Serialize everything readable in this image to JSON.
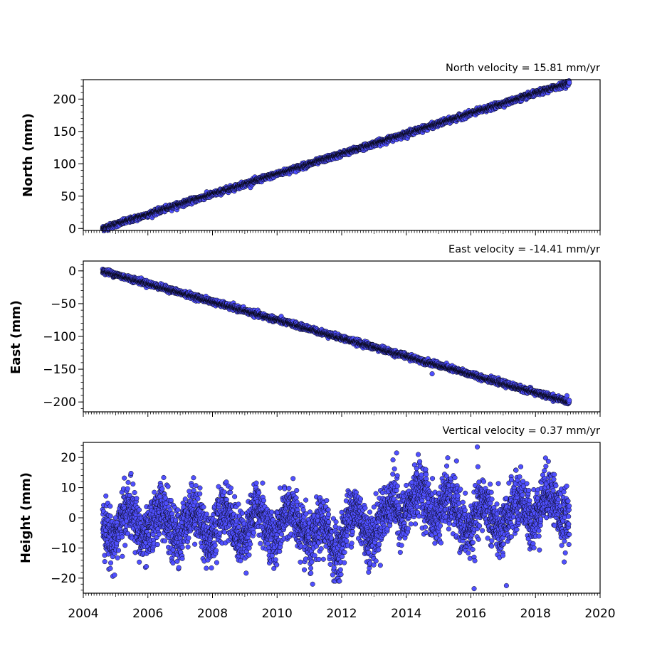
{
  "chart_data": [
    {
      "type": "scatter",
      "panel": "north",
      "title": "North velocity = 15.81 mm/yr",
      "ylabel": "North (mm)",
      "xlabel": "",
      "xlim": [
        2004,
        2020
      ],
      "ylim": [
        -3,
        230
      ],
      "yticks": [
        0,
        50,
        100,
        150,
        200
      ],
      "xtick_labels_shown": false,
      "grid": false,
      "trend": {
        "start_year": 2004.6,
        "end_year": 2019.05,
        "start_value": 0,
        "end_value": 225
      },
      "noise_mm": 2.0,
      "marker_color": "#5050ff",
      "marker_edge": "#000000",
      "series": [
        {
          "x": [
            2004.6,
            2005,
            2006,
            2007,
            2008,
            2009,
            2010,
            2011,
            2012,
            2013,
            2014,
            2015,
            2016,
            2017,
            2018,
            2019.05
          ],
          "y": [
            0,
            6,
            22,
            38,
            53,
            69,
            85,
            101,
            116,
            132,
            148,
            163,
            179,
            195,
            210,
            225
          ]
        }
      ]
    },
    {
      "type": "scatter",
      "panel": "east",
      "title": "East velocity = -14.41 mm/yr",
      "ylabel": "East (mm)",
      "xlabel": "",
      "xlim": [
        2004,
        2020
      ],
      "ylim": [
        -215,
        15
      ],
      "yticks": [
        0,
        -50,
        -100,
        -150,
        -200
      ],
      "xtick_labels_shown": false,
      "grid": false,
      "trend": {
        "start_year": 2004.6,
        "end_year": 2019.05,
        "start_value": 0,
        "end_value": -200
      },
      "noise_mm": 2.0,
      "outliers": [
        {
          "x": 2014.8,
          "y": -157
        }
      ],
      "marker_color": "#5050ff",
      "marker_edge": "#000000",
      "series": [
        {
          "x": [
            2004.6,
            2006,
            2008,
            2010,
            2012,
            2014,
            2016,
            2018,
            2019.05
          ],
          "y": [
            0,
            -16,
            -42,
            -71,
            -100,
            -128,
            -155,
            -182,
            -200
          ]
        }
      ]
    },
    {
      "type": "scatter",
      "panel": "height",
      "title": "Vertical velocity = 0.37 mm/yr",
      "ylabel": "Height (mm)",
      "xlabel": "",
      "xlim": [
        2004,
        2020
      ],
      "ylim": [
        -25,
        25
      ],
      "yticks": [
        20,
        10,
        0,
        -10,
        -20
      ],
      "xticks": [
        2004,
        2006,
        2008,
        2010,
        2012,
        2014,
        2016,
        2018,
        2020
      ],
      "xtick_labels_shown": true,
      "grid": false,
      "seasonal_amplitude_mm": 5,
      "noise_mm": 4.5,
      "baseline_by_period": [
        {
          "from": 2004.6,
          "to": 2011.0,
          "level": -2
        },
        {
          "from": 2011.0,
          "to": 2012.0,
          "level": -7
        },
        {
          "from": 2012.0,
          "to": 2013.5,
          "level": -2
        },
        {
          "from": 2013.5,
          "to": 2015.3,
          "level": 5
        },
        {
          "from": 2015.3,
          "to": 2017.5,
          "level": 0
        },
        {
          "from": 2017.5,
          "to": 2019.05,
          "level": 4
        }
      ],
      "extremes": [
        {
          "x": 2016.2,
          "y": 23.5
        },
        {
          "x": 2013.7,
          "y": 21.5
        },
        {
          "x": 2016.1,
          "y": -23.5
        },
        {
          "x": 2017.1,
          "y": -22.5
        },
        {
          "x": 2011.1,
          "y": -22
        }
      ],
      "marker_color": "#5050ff",
      "marker_edge": "#000000",
      "series": [
        {
          "x": [
            2004.6,
            2006,
            2008,
            2010,
            2012,
            2014,
            2016,
            2018,
            2019.05
          ],
          "y": [
            -2,
            -3,
            -1,
            -2,
            -3,
            4,
            0,
            3,
            2
          ]
        }
      ]
    }
  ]
}
